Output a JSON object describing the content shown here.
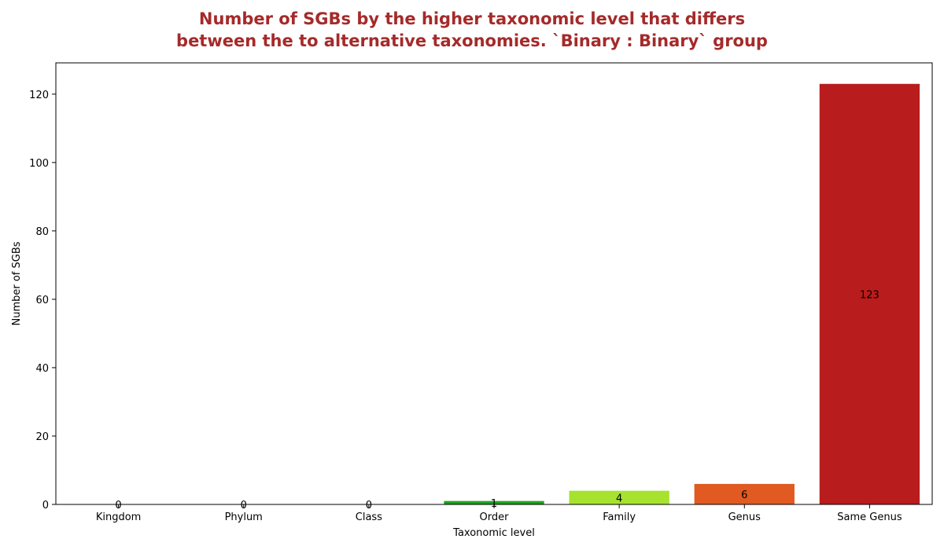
{
  "chart_data": {
    "type": "bar",
    "title_lines": [
      "Number of SGBs by the higher taxonomic level that differs",
      "between the to alternative taxonomies. `Binary : Binary` group"
    ],
    "title_color": "#a52a2a",
    "xlabel": "Taxonomic level",
    "ylabel": "Number of SGBs",
    "categories": [
      "Kingdom",
      "Phylum",
      "Class",
      "Order",
      "Family",
      "Genus",
      "Same Genus"
    ],
    "values": [
      0,
      0,
      0,
      1,
      4,
      6,
      123
    ],
    "data_labels": [
      "0",
      "0",
      "0",
      "1",
      "4",
      "6",
      "123"
    ],
    "colors": [
      "#1f77b4",
      "#1f77b4",
      "#1f77b4",
      "#1fa31f",
      "#a6e22e",
      "#e05a22",
      "#b91c1c"
    ],
    "ylim": [
      0,
      129.15
    ],
    "yticks": [
      0,
      20,
      40,
      60,
      80,
      100,
      120
    ],
    "grid": false,
    "legend": "none"
  }
}
